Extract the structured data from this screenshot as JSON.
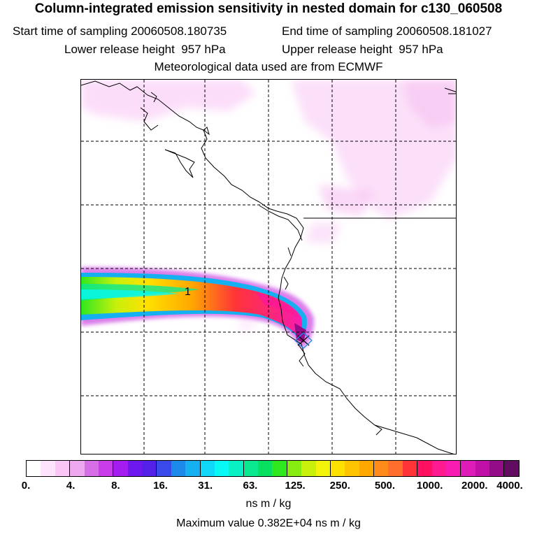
{
  "title": "Column-integrated emission sensitivity in nested domain for c130_060508",
  "sampling": {
    "start_label": "Start time of sampling",
    "start_value": "20060508.180735",
    "end_label": "End time of sampling",
    "end_value": "20060508.181027"
  },
  "release": {
    "lower_label": "Lower release height",
    "lower_value": "957 hPa",
    "upper_label": "Upper release height",
    "upper_value": "957 hPa"
  },
  "met_note": "Meteorological data used are from ECMWF",
  "map": {
    "plume_label": "1"
  },
  "colorbar": {
    "ticks": [
      "0.",
      "4.",
      "8.",
      "16.",
      "31.",
      "63.",
      "125.",
      "250.",
      "500.",
      "1000.",
      "2000.",
      "4000."
    ],
    "colors": [
      "#ffffff",
      "#fde4fc",
      "#f9c6f6",
      "#eea8f0",
      "#d66ee8",
      "#c83de8",
      "#a41cf0",
      "#6e18f0",
      "#5520e8",
      "#3a4ae8",
      "#1b8ae8",
      "#15b0f0",
      "#10d8f8",
      "#08f8f4",
      "#08f0c4",
      "#0ae890",
      "#08e060",
      "#30e820",
      "#88ec10",
      "#c8f00a",
      "#f4f40a",
      "#ffe000",
      "#ffc400",
      "#ffa800",
      "#ff8c1a",
      "#ff6e2a",
      "#ff3438",
      "#ff1060",
      "#fe1a90",
      "#f81cb0",
      "#e01cb8",
      "#c010a8",
      "#940c88",
      "#600c60"
    ],
    "unit": "ns m / kg"
  },
  "max_value_text": "Maximum value  0.382E+04 ns m / kg"
}
